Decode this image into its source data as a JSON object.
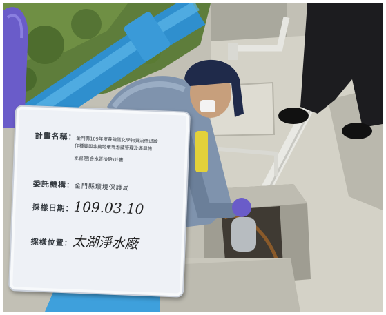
{
  "board": {
    "plan_label": "計畫名稱：",
    "plan_line1": "金門縣109年度養殖區化學物質流佈追蹤",
    "plan_line2": "作種業與非農地環境潛藏管理及導與施",
    "plan_line3": "水管理(含水質檢驗)計畫",
    "agency_label": "委託機構：",
    "agency_value": "金門縣環境保護局",
    "date_label": "採樣日期：",
    "date_value": "109.03.10",
    "location_label": "採樣位置：",
    "location_value": "太湖淨水廠"
  },
  "colors": {
    "pipe_blue": "#3ea0dc",
    "grass": "#5a7a3a",
    "concrete": "#c9c7bc",
    "board": "#eef1f6",
    "glove": "#6a5cc9",
    "cap": "#1f2a4a"
  }
}
